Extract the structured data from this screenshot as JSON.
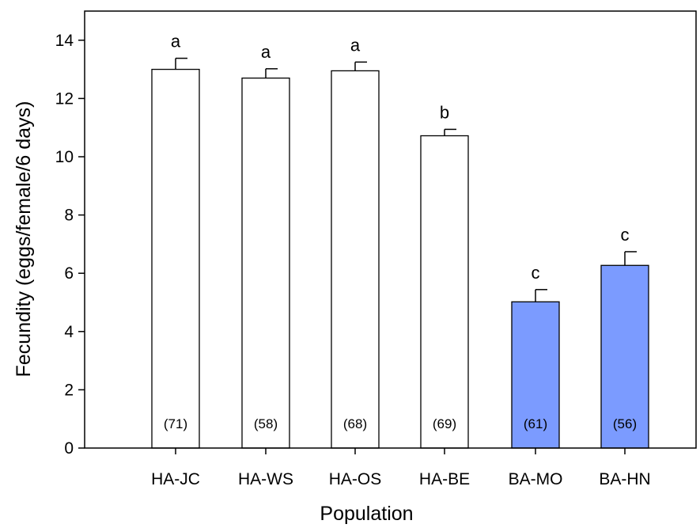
{
  "chart_data": {
    "type": "bar",
    "categories": [
      "HA-JC",
      "HA-WS",
      "HA-OS",
      "HA-BE",
      "BA-MO",
      "BA-HN"
    ],
    "values": [
      13.0,
      12.7,
      12.95,
      10.72,
      5.02,
      6.27
    ],
    "errors": [
      0.38,
      0.32,
      0.3,
      0.22,
      0.42,
      0.47
    ],
    "significance": [
      "a",
      "a",
      "a",
      "b",
      "c",
      "c"
    ],
    "sample_sizes": [
      "(71)",
      "(58)",
      "(68)",
      "(69)",
      "(61)",
      "(56)"
    ],
    "bar_colors": [
      "#ffffff",
      "#ffffff",
      "#ffffff",
      "#ffffff",
      "#7b9bff",
      "#7b9bff"
    ],
    "xlabel": "Population",
    "ylabel": "Fecundity (eggs/female/6 days)",
    "ylim": [
      0,
      15
    ],
    "yticks": [
      "0",
      "2",
      "4",
      "6",
      "8",
      "10",
      "12",
      "14"
    ],
    "grid": false,
    "legend": "none"
  }
}
